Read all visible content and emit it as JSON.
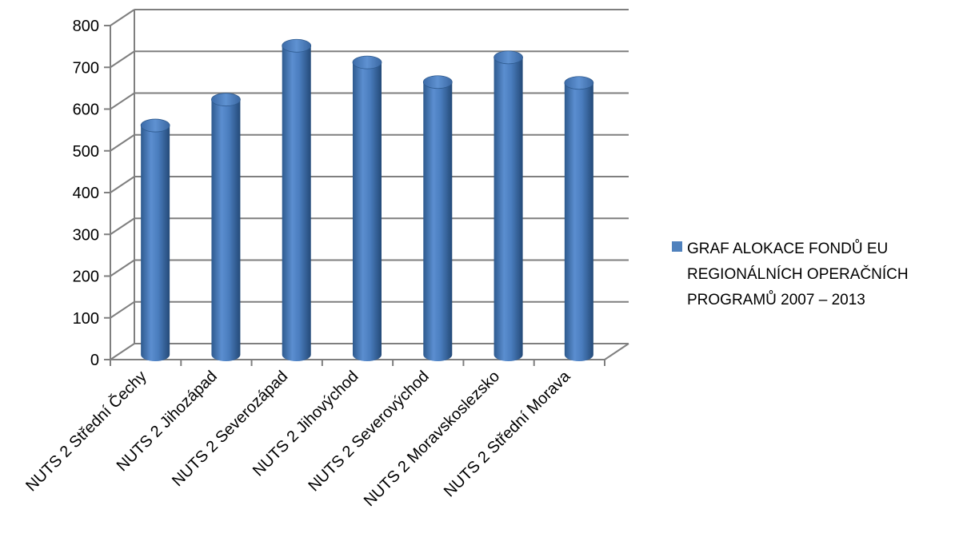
{
  "chart_data": {
    "type": "bar",
    "style": "3d-cylinder",
    "title": "",
    "xlabel": "",
    "ylabel": "",
    "ylim": [
      0,
      800
    ],
    "yticks": [
      0,
      100,
      200,
      300,
      400,
      500,
      600,
      700,
      800
    ],
    "grid": true,
    "legend_position": "right",
    "categories": [
      "NUTS 2 Střední Čechy",
      "NUTS 2 Jihozápad",
      "NUTS 2 Severozápad",
      "NUTS 2 Jihovýchod",
      "NUTS 2 Severovýchod",
      "NUTS 2 Moravskoslezsko",
      "NUTS 2 Střední Morava"
    ],
    "series": [
      {
        "name": "GRAF ALOKACE FONDŮ EU REGIONÁLNÍCH OPERAČNÍCH PROGRAMŮ 2007 – 2013",
        "color": "#4F81BD",
        "values": [
          553,
          615,
          744,
          704,
          657,
          716,
          655
        ]
      }
    ]
  },
  "legend": {
    "line1": "GRAF ALOKACE FONDŮ EU",
    "line2": "REGIONÁLNÍCH OPERAČNÍCH",
    "line3": "PROGRAMŮ 2007 – 2013"
  }
}
